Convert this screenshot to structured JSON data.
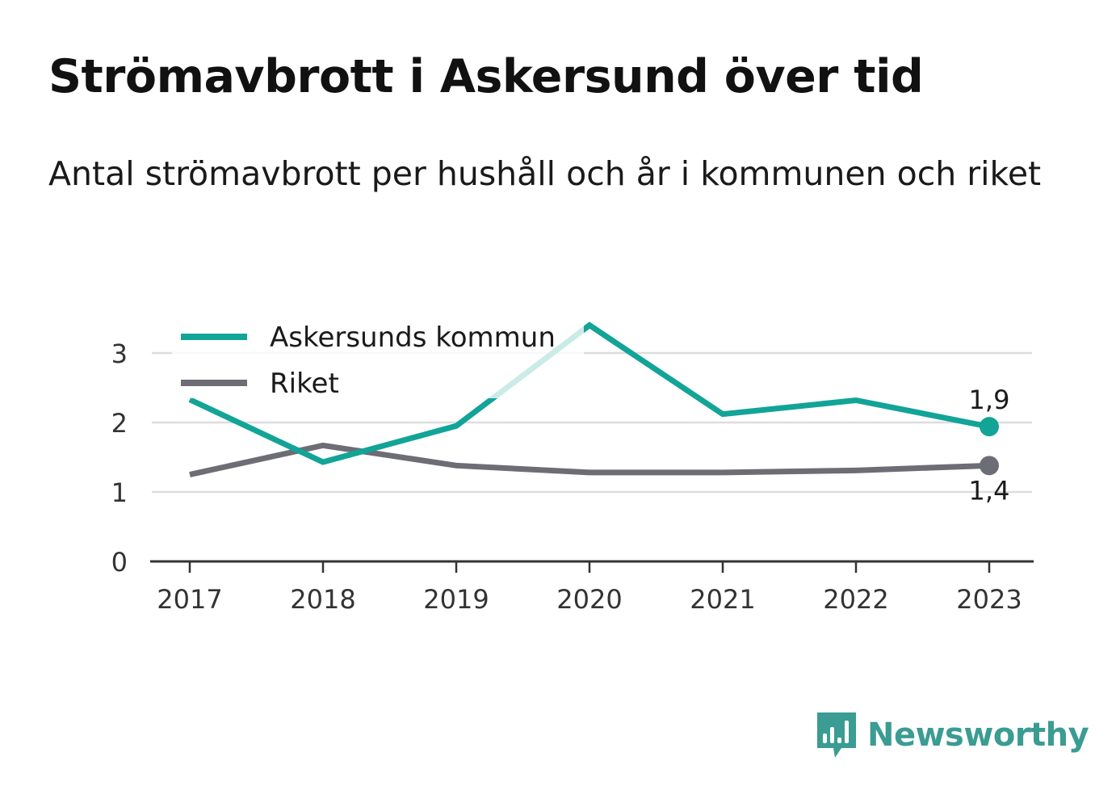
{
  "title": "Strömavbrott i Askersund över tid",
  "subtitle": "Antal strömavbrott per hushåll och år i kommunen och riket",
  "brand": {
    "name": "Newsworthy",
    "icon": "bar-chart-speech-bubble-icon"
  },
  "colors": {
    "kommun": "#12a497",
    "riket": "#6d6d75",
    "grid": "#dddddd",
    "axis": "#333333",
    "brand": "#3a9c92"
  },
  "chart_data": {
    "type": "line",
    "categories": [
      "2017",
      "2018",
      "2019",
      "2020",
      "2021",
      "2022",
      "2023"
    ],
    "series": [
      {
        "name": "Askersunds kommun",
        "values": [
          2.33,
          1.43,
          1.95,
          3.4,
          2.12,
          2.32,
          1.94
        ]
      },
      {
        "name": "Riket",
        "values": [
          1.25,
          1.67,
          1.38,
          1.28,
          1.28,
          1.31,
          1.38
        ]
      }
    ],
    "yticks": [
      "0",
      "1",
      "2",
      "3"
    ],
    "ylim": [
      0,
      3.4
    ],
    "grid": true,
    "legend": "top-left",
    "end_labels": [
      "1,9",
      "1,4"
    ]
  }
}
